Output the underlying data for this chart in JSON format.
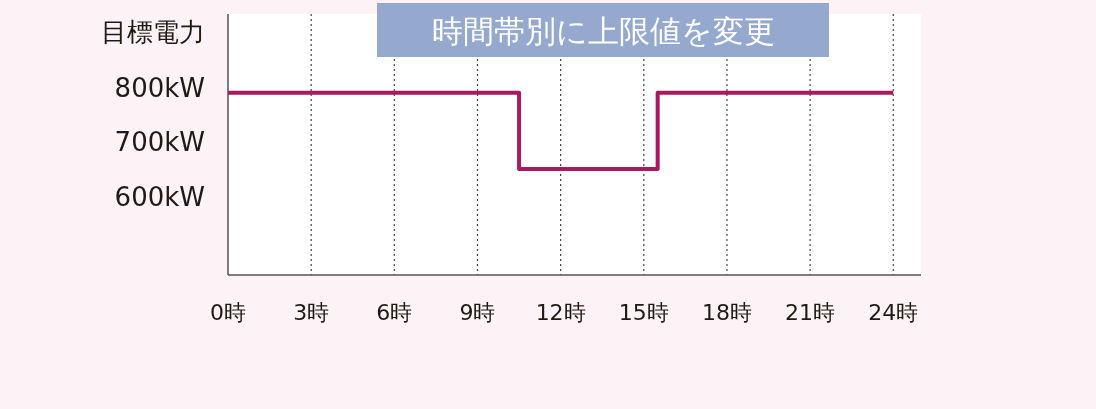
{
  "chart_data": {
    "type": "step",
    "title": "時間帯別に上限値を変更",
    "ylabel": "目標電力",
    "x": [
      0,
      10.5,
      15.5,
      24
    ],
    "series": [
      {
        "color": "#a8195f",
        "values": [
          800,
          660,
          800,
          800
        ]
      }
    ],
    "xlim": [
      0,
      25
    ],
    "xticks": [
      {
        "value": 0,
        "label": "0時"
      },
      {
        "value": 3,
        "label": "3時"
      },
      {
        "value": 6,
        "label": "6時"
      },
      {
        "value": 9,
        "label": "9時"
      },
      {
        "value": 12,
        "label": "12時"
      },
      {
        "value": 15,
        "label": "15時"
      },
      {
        "value": 18,
        "label": "18時"
      },
      {
        "value": 21,
        "label": "21時"
      },
      {
        "value": 24,
        "label": "24時"
      }
    ],
    "ylim": [
      465,
      945
    ],
    "yticks": [
      {
        "value": 600,
        "label": "600kW"
      },
      {
        "value": 700,
        "label": "700kW"
      },
      {
        "value": 800,
        "label": "800kW"
      }
    ],
    "grid": "x",
    "line_style": "solid",
    "marker": "none"
  }
}
